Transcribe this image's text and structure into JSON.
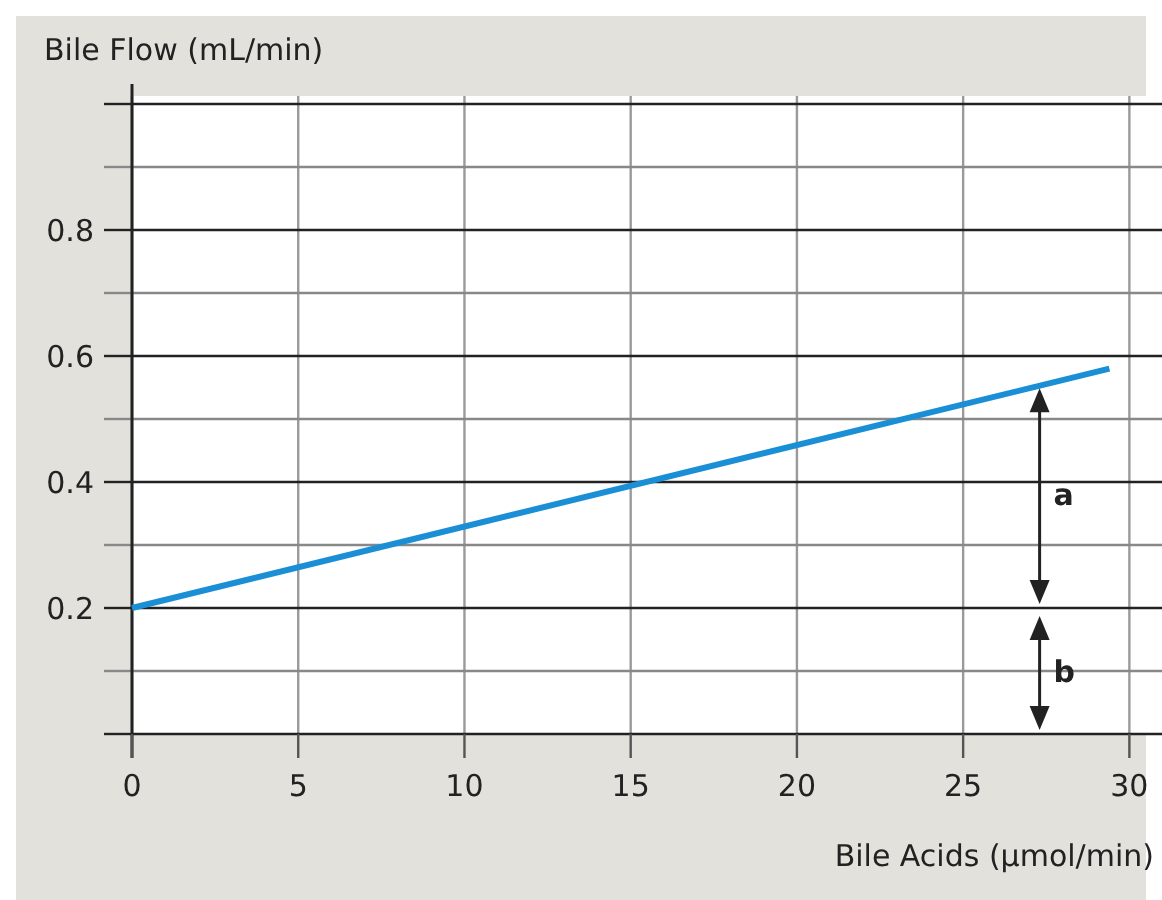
{
  "chart_data": {
    "type": "line",
    "xlabel": "Bile Acids (µmol/min)",
    "ylabel": "Bile Flow (mL/min)",
    "x": [
      0,
      29.4
    ],
    "series": [
      {
        "color": "#1a8fd6",
        "values": [
          0.2,
          0.58
        ]
      }
    ],
    "xlim": [
      0,
      30.5
    ],
    "xticks": [
      0,
      5,
      10,
      15,
      20,
      25,
      30
    ],
    "ylim": [
      0,
      1.0
    ],
    "yticks": [
      {
        "value": 0,
        "label": null
      },
      {
        "value": 0.1,
        "label": null
      },
      0.2,
      {
        "value": 0.3,
        "label": null
      },
      0.4,
      {
        "value": 0.5,
        "label": null
      },
      0.6,
      {
        "value": 0.7,
        "label": null
      },
      0.8,
      {
        "value": 0.9,
        "label": null
      },
      {
        "value": 1.0,
        "label": null
      }
    ],
    "grid": true,
    "marker": "none",
    "line_style": "solid",
    "annotations": [
      "a",
      "b"
    ]
  }
}
